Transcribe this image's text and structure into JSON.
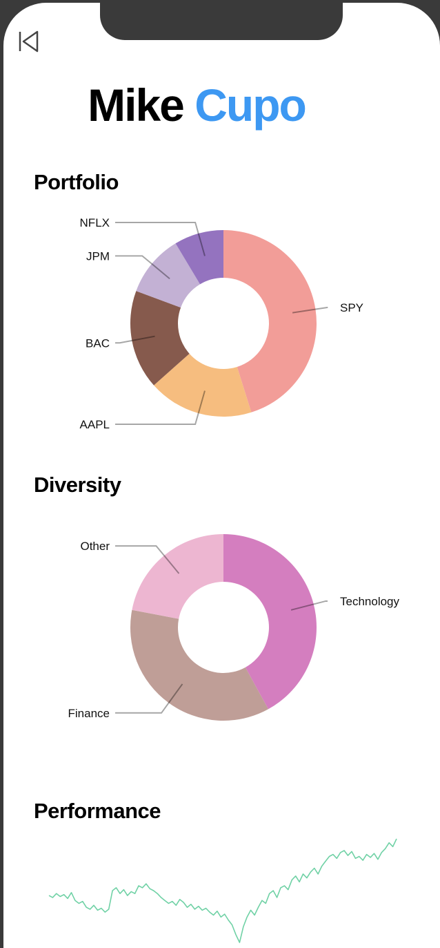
{
  "header": {
    "first_name": "Mike",
    "last_name": "Cupo"
  },
  "sections": {
    "portfolio": "Portfolio",
    "diversity": "Diversity",
    "performance": "Performance"
  },
  "chart_data": [
    {
      "type": "pie",
      "title": "Portfolio",
      "categories": [
        "SPY",
        "AAPL",
        "BAC",
        "JPM",
        "NFLX"
      ],
      "values": [
        42,
        17,
        16,
        10,
        8
      ],
      "colors": [
        "#f29d98",
        "#f6bd7f",
        "#865a4d",
        "#c3b1d4",
        "#9473bf"
      ]
    },
    {
      "type": "pie",
      "title": "Diversity",
      "categories": [
        "Technology",
        "Finance",
        "Other"
      ],
      "values": [
        42,
        36,
        22
      ],
      "colors": [
        "#d47ebf",
        "#bf9e97",
        "#edb6d1"
      ]
    },
    {
      "type": "line",
      "title": "Performance",
      "color": "#6fd1a5",
      "y": [
        50,
        48,
        52,
        49,
        51,
        47,
        53,
        45,
        42,
        44,
        38,
        36,
        40,
        35,
        37,
        33,
        36,
        55,
        58,
        52,
        56,
        50,
        54,
        52,
        60,
        58,
        62,
        57,
        55,
        52,
        48,
        45,
        42,
        44,
        40,
        46,
        43,
        38,
        41,
        36,
        39,
        35,
        37,
        33,
        30,
        34,
        28,
        31,
        25,
        20,
        10,
        2,
        18,
        28,
        35,
        30,
        38,
        45,
        42,
        52,
        55,
        48,
        58,
        60,
        56,
        66,
        70,
        64,
        72,
        68,
        74,
        78,
        72,
        80,
        85,
        90,
        92,
        88,
        94,
        96,
        91,
        95,
        88,
        90,
        86,
        92,
        89,
        93,
        87,
        94,
        98,
        104,
        100,
        108
      ],
      "xlabel": "",
      "ylabel": ""
    }
  ]
}
